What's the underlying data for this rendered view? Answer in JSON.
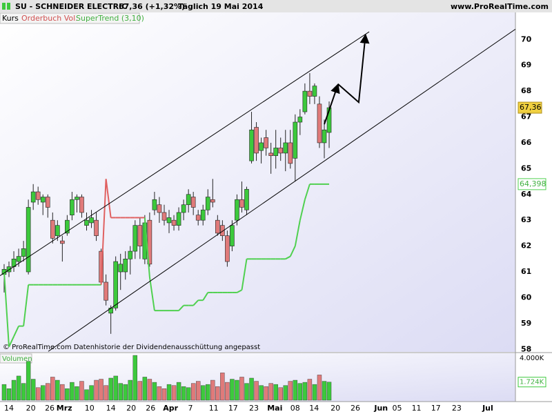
{
  "header": {
    "symbol": "SU - SCHNEIDER ELECTRIC",
    "quote": "67,36 (+1,32%)",
    "period": "Täglich 19 Mai 2014",
    "site": "www.ProRealTime.com"
  },
  "tabs": [
    "Kurs",
    "Orderbuch Vol.",
    "SuperTrend (3,10)"
  ],
  "footer": "© ProRealTime.com  Datenhistorie der Dividendenausschüttung angepasst",
  "chart_data": {
    "type": "candlestick",
    "xlim": [
      -0.85,
      105.4
    ],
    "xticks": [
      {
        "value": 1,
        "label": "14"
      },
      {
        "value": 5.5,
        "label": "20"
      },
      {
        "value": 9.4,
        "label": "26"
      },
      {
        "value": 12.4,
        "label": "Mrz"
      },
      {
        "value": 17.6,
        "label": "10"
      },
      {
        "value": 22,
        "label": "14"
      },
      {
        "value": 26.2,
        "label": "20"
      },
      {
        "value": 30.2,
        "label": "26"
      },
      {
        "value": 34.3,
        "label": "Apr"
      },
      {
        "value": 38.4,
        "label": "7"
      },
      {
        "value": 43.2,
        "label": "11"
      },
      {
        "value": 47.2,
        "label": "17"
      },
      {
        "value": 51.5,
        "label": "23"
      },
      {
        "value": 55.8,
        "label": "Mai"
      },
      {
        "value": 60,
        "label": "08"
      },
      {
        "value": 63.9,
        "label": "14"
      },
      {
        "value": 68.3,
        "label": "20"
      },
      {
        "value": 72.4,
        "label": "26"
      },
      {
        "value": 77.7,
        "label": "Jun"
      },
      {
        "value": 81,
        "label": "05"
      },
      {
        "value": 85,
        "label": "11"
      },
      {
        "value": 89,
        "label": "17"
      },
      {
        "value": 93.3,
        "label": "23"
      },
      {
        "value": 99.7,
        "label": "Jul"
      }
    ],
    "ylim": [
      57.9,
      71.05
    ],
    "yticks": [
      58,
      59,
      60,
      61,
      62,
      63,
      64,
      65,
      66,
      67,
      68,
      69,
      70
    ],
    "up_color": "#3cc93c",
    "down_color": "#e07a7a",
    "open": [
      60.9,
      61.0,
      61.2,
      61.4,
      61.6,
      61.0,
      63.7,
      64.1,
      63.7,
      63.9,
      63.0,
      62.4,
      62.2,
      62.5,
      63.2,
      63.8,
      63.9,
      62.8,
      62.9,
      63.0,
      61.8,
      60.6,
      59.4,
      59.6,
      61.0,
      61.0,
      61.5,
      61.8,
      62.8,
      61.5,
      63.0,
      63.4,
      63.6,
      63.3,
      62.9,
      63.0,
      62.8,
      63.3,
      63.6,
      63.9,
      63.2,
      63.0,
      63.4,
      63.8,
      63.0,
      62.8,
      62.4,
      62.0,
      63.0,
      63.8,
      63.4,
      65.3,
      66.6,
      65.7,
      66.2,
      65.6,
      65.5,
      65.8,
      65.6,
      66.0,
      65.4,
      66.8,
      67.2,
      68.0,
      67.8,
      67.5,
      66.0,
      66.4
    ],
    "high": [
      61.3,
      61.4,
      61.8,
      61.9,
      62.2,
      63.8,
      64.4,
      64.3,
      64.0,
      64.0,
      63.3,
      63.0,
      62.4,
      63.2,
      64.1,
      64.0,
      64.0,
      63.3,
      63.4,
      63.3,
      61.9,
      60.9,
      59.7,
      61.6,
      61.7,
      61.8,
      62.0,
      63.0,
      63.1,
      63.2,
      63.3,
      64.1,
      63.9,
      63.6,
      63.4,
      63.2,
      63.5,
      63.8,
      64.2,
      64.1,
      63.4,
      63.6,
      64.2,
      64.6,
      63.2,
      63.0,
      62.6,
      63.0,
      64.0,
      64.5,
      64.3,
      67.2,
      66.8,
      66.2,
      66.5,
      66.0,
      66.5,
      66.2,
      66.5,
      66.5,
      67.1,
      67.3,
      68.3,
      68.7,
      68.3,
      67.8,
      66.9,
      67.6
    ],
    "low": [
      60.2,
      60.8,
      61.0,
      61.2,
      61.4,
      60.9,
      63.4,
      63.6,
      63.2,
      63.1,
      62.1,
      62.2,
      61.4,
      62.4,
      63.0,
      63.3,
      63.1,
      62.6,
      62.7,
      62.2,
      60.5,
      59.7,
      58.6,
      59.5,
      60.3,
      60.7,
      60.9,
      61.5,
      61.5,
      61.3,
      61.2,
      63.2,
      62.9,
      62.8,
      62.5,
      62.6,
      62.6,
      63.0,
      63.3,
      63.2,
      62.8,
      62.8,
      63.2,
      63.5,
      62.4,
      62.2,
      61.2,
      61.8,
      62.8,
      63.3,
      63.2,
      65.2,
      65.3,
      65.2,
      65.5,
      64.8,
      65.0,
      65.3,
      64.9,
      65.0,
      64.5,
      66.3,
      67.1,
      67.5,
      67.5,
      65.8,
      65.4,
      65.8
    ],
    "close": [
      61.1,
      61.2,
      61.5,
      61.6,
      61.9,
      63.5,
      64.1,
      63.8,
      63.9,
      63.5,
      62.3,
      62.8,
      62.1,
      63.0,
      63.8,
      63.9,
      63.3,
      63.0,
      63.1,
      62.4,
      60.6,
      59.9,
      59.6,
      61.4,
      61.3,
      61.5,
      61.8,
      62.8,
      62.0,
      62.9,
      61.3,
      63.8,
      63.3,
      63.0,
      63.1,
      62.8,
      63.3,
      63.6,
      64.0,
      63.5,
      63.0,
      63.4,
      63.9,
      63.7,
      62.5,
      62.4,
      61.4,
      62.8,
      63.8,
      63.5,
      64.2,
      66.5,
      65.6,
      66.0,
      65.8,
      65.5,
      65.8,
      65.6,
      66.0,
      65.2,
      66.8,
      67.0,
      68.0,
      67.8,
      68.2,
      66.0,
      66.5,
      67.36
    ],
    "last_price_label": "67,36",
    "supertrend": {
      "color": "#4fd04f",
      "above_color": "#e06060",
      "last_label": "64,398",
      "values": [
        61.0,
        58.1,
        58.5,
        58.9,
        58.9,
        60.5,
        60.5,
        60.5,
        60.5,
        60.5,
        60.5,
        60.5,
        60.5,
        60.5,
        60.5,
        60.5,
        60.5,
        60.5,
        60.5,
        60.5,
        60.5,
        64.6,
        63.1,
        63.1,
        63.1,
        63.1,
        63.1,
        63.1,
        63.1,
        63.1,
        60.8,
        59.5,
        59.5,
        59.5,
        59.5,
        59.5,
        59.5,
        59.7,
        59.7,
        59.7,
        59.9,
        59.9,
        60.2,
        60.2,
        60.2,
        60.2,
        60.2,
        60.2,
        60.2,
        60.3,
        61.5,
        61.5,
        61.5,
        61.5,
        61.5,
        61.5,
        61.5,
        61.5,
        61.5,
        61.6,
        62.0,
        63.0,
        63.8,
        64.398,
        64.398,
        64.398,
        64.398,
        64.398
      ]
    },
    "trendlines": [
      {
        "x": [
          -0.85,
          75.25
        ],
        "y": [
          60.85,
          70.3
        ]
      },
      {
        "x": [
          9.1,
          105.4
        ],
        "y": [
          57.92,
          70.4
        ]
      }
    ],
    "arrows": [
      {
        "x": [
          66.0,
          68.85
        ],
        "y": [
          66.72,
          68.27
        ]
      },
      {
        "x": [
          68.85,
          73.1,
          74.5
        ],
        "y": [
          68.27,
          67.57,
          70.19
        ]
      }
    ],
    "volume": {
      "title": "Volumen",
      "ylim": [
        0,
        4.46
      ],
      "yticks": [
        {
          "value": 4,
          "label": "4.000K"
        }
      ],
      "last_label": "1.724K",
      "values": [
        1.5,
        1.1,
        1.9,
        2.3,
        1.6,
        3.7,
        2.0,
        1.2,
        1.4,
        1.6,
        2.2,
        1.9,
        1.5,
        1.1,
        1.7,
        1.3,
        1.8,
        1.0,
        1.4,
        1.9,
        2.0,
        1.4,
        2.1,
        2.3,
        1.6,
        1.5,
        1.9,
        4.26,
        1.8,
        2.2,
        2.0,
        1.7,
        1.3,
        1.1,
        1.5,
        1.4,
        1.7,
        1.3,
        1.2,
        1.6,
        1.8,
        1.4,
        1.5,
        1.9,
        1.3,
        2.6,
        1.7,
        2.0,
        1.9,
        2.2,
        1.6,
        2.1,
        1.8,
        1.4,
        1.3,
        1.6,
        1.5,
        1.2,
        1.4,
        1.8,
        1.9,
        1.6,
        1.7,
        2.0,
        1.5,
        2.4,
        1.8,
        1.724
      ]
    }
  }
}
